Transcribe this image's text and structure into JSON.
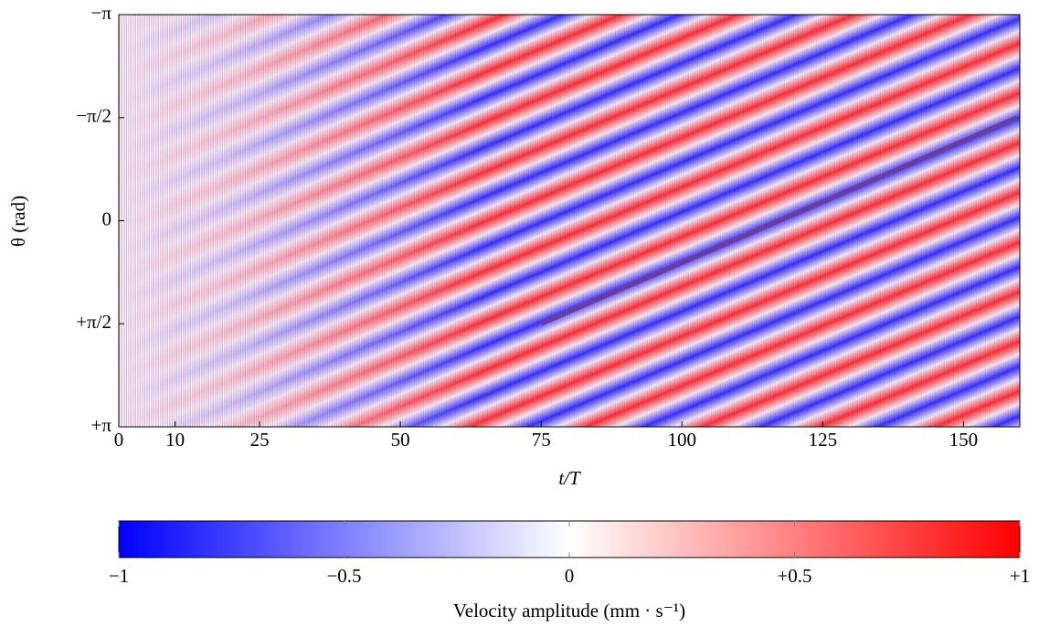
{
  "chart_data": {
    "type": "heatmap",
    "xlabel": "t/T",
    "ylabel": "θ (rad)",
    "xlim": [
      0,
      160
    ],
    "xticks": [
      0,
      10,
      25,
      50,
      75,
      100,
      125,
      150
    ],
    "ylim": [
      -3.1416,
      3.1416
    ],
    "yticks": [
      {
        "value": -3.1416,
        "label": "−π"
      },
      {
        "value": -1.5708,
        "label": "−π/2"
      },
      0,
      {
        "value": 1.5708,
        "label": "+π/2"
      },
      {
        "value": 3.1416,
        "label": "+π"
      }
    ],
    "annotation_line": {
      "x": [
        75,
        159.5
      ],
      "y": [
        1.5708,
        -1.5708
      ],
      "color": "#6a3d9a"
    },
    "colormap": [
      "#0000ff",
      "#ffffff",
      "#ff0000"
    ],
    "colorbar_label": "Velocity amplitude (mm · s⁻¹)",
    "clim": [
      -1,
      1
    ],
    "cticks": [
      {
        "value": -1,
        "label": "−1"
      },
      {
        "value": -0.5,
        "label": "−0.5"
      },
      0,
      {
        "value": 0.5,
        "label": "+0.5"
      },
      {
        "value": 1,
        "label": "+1"
      }
    ]
  }
}
